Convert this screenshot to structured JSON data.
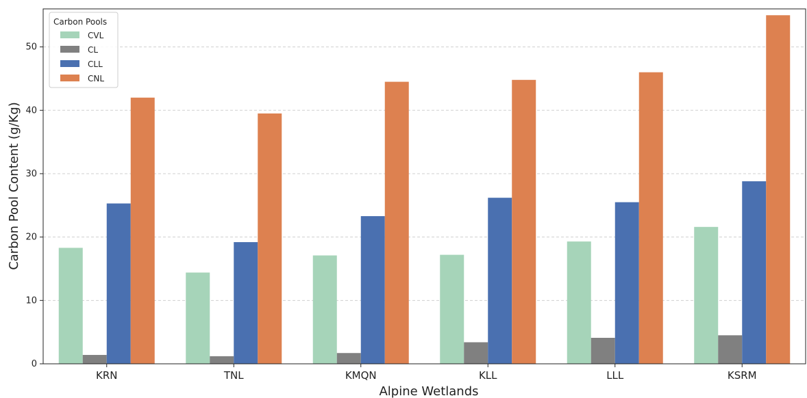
{
  "chart_data": {
    "type": "bar",
    "title": "",
    "xlabel": "Alpine Wetlands",
    "ylabel": "Carbon Pool Content (g/Kg)",
    "ylim": [
      0,
      56
    ],
    "yticks": [
      0,
      10,
      20,
      30,
      40,
      50
    ],
    "grid": "y-dashed",
    "legend": {
      "title": "Carbon Pools",
      "placement": "top-left"
    },
    "categories": [
      "KRN",
      "TNL",
      "KMQN",
      "KLL",
      "LLL",
      "KSRM"
    ],
    "series": [
      {
        "name": "CVL",
        "color": "#a6d4b9",
        "values": [
          18.3,
          14.4,
          17.1,
          17.2,
          19.3,
          21.6
        ]
      },
      {
        "name": "CL",
        "color": "#808080",
        "values": [
          1.4,
          1.2,
          1.7,
          3.4,
          4.1,
          4.5
        ]
      },
      {
        "name": "CLL",
        "color": "#4a70b0",
        "values": [
          25.3,
          19.2,
          23.3,
          26.2,
          25.5,
          28.8
        ]
      },
      {
        "name": "CNL",
        "color": "#dd8150",
        "values": [
          42.0,
          39.5,
          44.5,
          44.8,
          46.0,
          55.0
        ]
      }
    ]
  }
}
